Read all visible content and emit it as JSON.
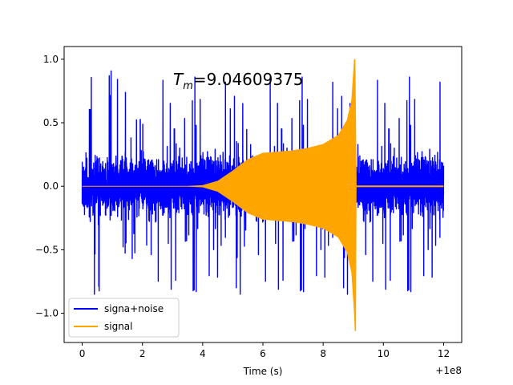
{
  "chart_data": {
    "type": "line",
    "title": "",
    "annotation": {
      "prefix": "T",
      "subscript": "m",
      "value_text": "=9.04609375",
      "value": 9.04609375,
      "anchor_x": 3.0,
      "anchor_y": 0.82
    },
    "xlabel": "Time (s)",
    "ylabel": "",
    "x_offset_label": "+1e8",
    "xlim": [
      -0.6,
      12.6
    ],
    "ylim": [
      -1.23,
      1.1
    ],
    "xticks": [
      0,
      2,
      4,
      6,
      8,
      10,
      12
    ],
    "xtick_labels": [
      "0",
      "2",
      "4",
      "6",
      "8",
      "10",
      "12"
    ],
    "yticks": [
      -1.0,
      -0.5,
      0.0,
      0.5,
      1.0
    ],
    "ytick_labels": [
      "−1.0",
      "−0.5",
      "0.0",
      "0.5",
      "1.0"
    ],
    "grid": false,
    "legend_position": "lower-left",
    "series": [
      {
        "name": "signa+noise",
        "color": "#0000ff",
        "x_range": [
          0,
          12
        ],
        "baseline_amplitude": 0.32,
        "max": 0.92,
        "min": -0.85
      },
      {
        "name": "signal",
        "color": "#ffa500",
        "envelope_points": [
          {
            "x": 0,
            "y": 0.0
          },
          {
            "x": 3.5,
            "y": 0.0
          },
          {
            "x": 4.0,
            "y": 0.005
          },
          {
            "x": 4.5,
            "y": 0.04
          },
          {
            "x": 5.0,
            "y": 0.12
          },
          {
            "x": 5.5,
            "y": 0.21
          },
          {
            "x": 6.0,
            "y": 0.26
          },
          {
            "x": 6.5,
            "y": 0.27
          },
          {
            "x": 7.0,
            "y": 0.28
          },
          {
            "x": 7.5,
            "y": 0.3
          },
          {
            "x": 8.0,
            "y": 0.33
          },
          {
            "x": 8.5,
            "y": 0.4
          },
          {
            "x": 8.8,
            "y": 0.52
          },
          {
            "x": 8.95,
            "y": 0.68
          },
          {
            "x": 9.04,
            "y": 1.0
          }
        ],
        "peak_x": 9.05,
        "peak_max": 1.0,
        "peak_min": -1.14,
        "post_merger_amplitude": 0.003
      }
    ]
  }
}
